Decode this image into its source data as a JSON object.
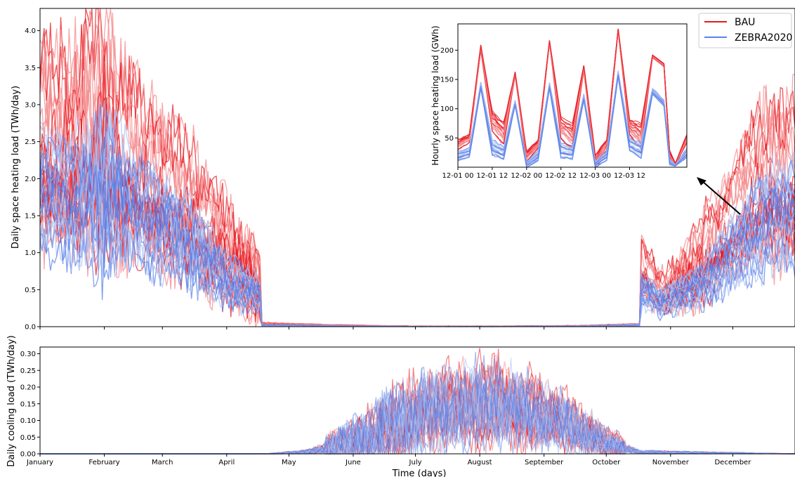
{
  "colors": {
    "bau": "#e8181f",
    "bau_light": "#f4898c",
    "zebra": "#5b82e8",
    "zebra_light": "#a9bff3",
    "cool_mix": "#9a5cc0"
  },
  "legend": {
    "position": "top-right",
    "items": [
      {
        "label": "BAU",
        "color": "#e8181f"
      },
      {
        "label": "ZEBRA2020",
        "color": "#5b82e8"
      }
    ]
  },
  "chart_data": [
    {
      "type": "line",
      "id": "heating",
      "ylabel": "Daily space heating load (TWh/day)",
      "xlabel": "",
      "ylim": [
        0,
        4.3
      ],
      "xlim": [
        1,
        365
      ],
      "grid": false,
      "yticks": [
        0.0,
        0.5,
        1.0,
        1.5,
        2.0,
        2.5,
        3.0,
        3.5,
        4.0
      ],
      "ytick_labels": [
        "0.0",
        "0.5",
        "1.0",
        "1.5",
        "2.0",
        "2.5",
        "3.0",
        "3.5",
        "4.0"
      ],
      "xticks": [
        1,
        32,
        60,
        91,
        121,
        152,
        182,
        213,
        244,
        274,
        305,
        335
      ],
      "ensemble_members_per_scenario": 20,
      "series": [
        {
          "name": "BAU",
          "color": "#e8181f",
          "x": [
            1,
            15,
            32,
            46,
            60,
            75,
            91,
            103,
            107,
            108,
            140,
            180,
            220,
            260,
            290,
            290.5,
            300,
            320,
            335,
            350,
            365
          ],
          "mean": [
            2.6,
            2.55,
            2.75,
            2.3,
            1.95,
            1.6,
            1.05,
            0.7,
            0.55,
            0.04,
            0.02,
            0.005,
            0.005,
            0.01,
            0.03,
            0.9,
            0.45,
            0.9,
            1.5,
            2.1,
            2.0
          ],
          "upper": [
            3.6,
            3.7,
            4.28,
            3.2,
            2.75,
            2.4,
            1.7,
            1.4,
            1.2,
            0.07,
            0.04,
            0.02,
            0.02,
            0.03,
            0.06,
            1.2,
            0.7,
            1.5,
            1.9,
            2.9,
            2.8
          ]
        },
        {
          "name": "ZEBRA2020",
          "color": "#5b82e8",
          "x": [
            1,
            15,
            32,
            46,
            60,
            75,
            91,
            103,
            107,
            108,
            140,
            180,
            220,
            260,
            290,
            290.5,
            300,
            320,
            335,
            350,
            365
          ],
          "mean": [
            1.7,
            1.6,
            1.7,
            1.5,
            1.3,
            1.0,
            0.6,
            0.45,
            0.4,
            0.02,
            0.01,
            0.002,
            0.002,
            0.005,
            0.02,
            0.5,
            0.3,
            0.55,
            0.95,
            1.35,
            1.45
          ],
          "upper": [
            2.2,
            2.1,
            2.8,
            2.0,
            1.8,
            1.5,
            0.9,
            0.7,
            0.6,
            0.04,
            0.02,
            0.01,
            0.01,
            0.02,
            0.04,
            0.75,
            0.45,
            0.8,
            1.3,
            1.8,
            1.9
          ]
        }
      ]
    },
    {
      "type": "line",
      "id": "cooling",
      "ylabel": "Daily cooling load (TWh/day)",
      "xlabel": "Time (days)",
      "ylim": [
        0,
        0.32
      ],
      "xlim": [
        1,
        365
      ],
      "grid": false,
      "yticks": [
        0.0,
        0.05,
        0.1,
        0.15,
        0.2,
        0.25,
        0.3
      ],
      "ytick_labels": [
        "0.00",
        "0.05",
        "0.10",
        "0.15",
        "0.20",
        "0.25",
        "0.30"
      ],
      "xticks": [
        1,
        32,
        60,
        91,
        121,
        152,
        182,
        213,
        244,
        274,
        305,
        335
      ],
      "xtick_labels": [
        "January",
        "February",
        "March",
        "April",
        "May",
        "June",
        "July",
        "August",
        "September",
        "October",
        "November",
        "December"
      ],
      "series": [
        {
          "name": "BAU",
          "color": "#e8181f",
          "x": [
            1,
            110,
            130,
            150,
            165,
            180,
            195,
            210,
            220,
            230,
            245,
            260,
            275,
            290,
            365
          ],
          "mean": [
            0,
            0.0,
            0.005,
            0.03,
            0.07,
            0.11,
            0.14,
            0.15,
            0.16,
            0.14,
            0.12,
            0.08,
            0.03,
            0.005,
            0
          ],
          "upper": [
            0,
            0.002,
            0.04,
            0.12,
            0.2,
            0.27,
            0.29,
            0.3,
            0.32,
            0.29,
            0.24,
            0.18,
            0.1,
            0.03,
            0
          ]
        },
        {
          "name": "ZEBRA2020",
          "color": "#5b82e8",
          "x": [
            1,
            110,
            130,
            150,
            165,
            180,
            195,
            210,
            220,
            230,
            245,
            260,
            275,
            290,
            365
          ],
          "mean": [
            0,
            0.0,
            0.005,
            0.03,
            0.07,
            0.11,
            0.13,
            0.14,
            0.15,
            0.13,
            0.11,
            0.07,
            0.03,
            0.005,
            0
          ],
          "upper": [
            0,
            0.002,
            0.04,
            0.13,
            0.22,
            0.27,
            0.28,
            0.28,
            0.29,
            0.27,
            0.22,
            0.17,
            0.09,
            0.03,
            0
          ]
        }
      ]
    },
    {
      "type": "line",
      "id": "inset",
      "ylabel": "Hourly space heating load (GWh)",
      "xlabel": "",
      "ylim": [
        0,
        245
      ],
      "xlim": [
        0,
        80
      ],
      "yticks": [
        50,
        100,
        150,
        200
      ],
      "ytick_labels": [
        "50",
        "100",
        "150",
        "200"
      ],
      "xticks": [
        0,
        12,
        24,
        36,
        48,
        60
      ],
      "xtick_labels": [
        "12-01 00",
        "12-01 12",
        "12-02 00",
        "12-02 12",
        "12-03 00",
        "12-03 12"
      ],
      "series": [
        {
          "name": "BAU",
          "color": "#e8181f",
          "x": [
            0,
            4,
            8,
            12,
            16,
            20,
            24,
            28,
            32,
            36,
            40,
            44,
            48,
            52,
            56,
            60,
            64,
            68,
            72,
            74,
            76,
            80
          ],
          "mean": [
            40,
            50,
            205,
            80,
            60,
            160,
            20,
            40,
            215,
            70,
            55,
            170,
            10,
            40,
            235,
            70,
            55,
            190,
            175,
            20,
            5,
            50
          ],
          "upper": [
            60,
            65,
            215,
            120,
            100,
            167,
            40,
            55,
            220,
            110,
            100,
            180,
            40,
            60,
            240,
            100,
            100,
            195,
            180,
            40,
            10,
            65
          ]
        },
        {
          "name": "ZEBRA2020",
          "color": "#5b82e8",
          "x": [
            0,
            4,
            8,
            12,
            16,
            20,
            24,
            28,
            32,
            36,
            40,
            44,
            48,
            52,
            56,
            60,
            64,
            68,
            72,
            74,
            76,
            80
          ],
          "mean": [
            20,
            25,
            140,
            35,
            25,
            110,
            5,
            20,
            140,
            30,
            25,
            120,
            5,
            20,
            160,
            40,
            30,
            130,
            110,
            10,
            3,
            25
          ],
          "upper": [
            35,
            40,
            150,
            60,
            45,
            118,
            15,
            35,
            150,
            55,
            45,
            130,
            15,
            35,
            170,
            60,
            55,
            140,
            120,
            20,
            5,
            40
          ]
        }
      ]
    }
  ]
}
